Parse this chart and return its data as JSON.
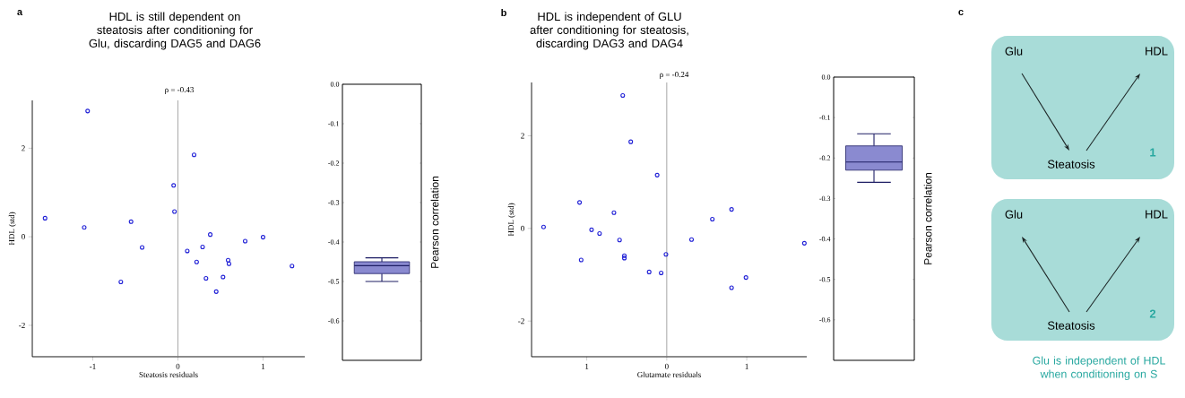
{
  "chart_data": [
    {
      "type": "scatter",
      "title": "HDL is still dependent on steatosis after conditioning for Glu, discarding DAG5 and DAG6",
      "xlabel": "Steatosis residuals",
      "ylabel": "HDL (std)",
      "marker": "circle",
      "xlim": [
        -1.71,
        1.49
      ],
      "ylim": [
        -2.71,
        3.08
      ],
      "xticks": [
        -1,
        0,
        1
      ],
      "yticks": [
        -2,
        0,
        2
      ],
      "annotations": [
        "a",
        "ρ = -0.43"
      ],
      "series": [
        {
          "type": "scatter",
          "color": "#1f1fd6",
          "x": [
            -1.56,
            -1.06,
            -1.1,
            -0.55,
            -0.42,
            -0.67,
            -0.05,
            -0.04,
            0.19,
            0.11,
            0.22,
            0.29,
            0.38,
            0.33,
            0.45,
            0.53,
            0.59,
            0.6,
            0.79,
            1.0,
            1.34
          ],
          "values": [
            0.42,
            2.84,
            0.21,
            0.34,
            -0.24,
            -1.02,
            1.16,
            0.57,
            1.85,
            -0.32,
            -0.57,
            -0.23,
            0.05,
            -0.94,
            -1.24,
            -0.91,
            -0.53,
            -0.61,
            -0.1,
            -0.01,
            -0.66
          ]
        }
      ],
      "ref_lines": [
        {
          "axis": "x",
          "value": 0,
          "color": "#7f7f7f"
        }
      ]
    },
    {
      "type": "box",
      "ylabel": "Pearson correlation",
      "categories": [
        null
      ],
      "color": "#8a8ad0",
      "ylim": [
        -0.7,
        0
      ],
      "yticks": [
        {
          "value": 0,
          "label": "0.0"
        },
        -0.1,
        -0.2,
        -0.3,
        -0.4,
        -0.5,
        -0.6
      ],
      "boxes": [
        {
          "low": -0.5,
          "q1": -0.48,
          "median": -0.46,
          "q3": -0.45,
          "high": -0.44
        }
      ]
    },
    {
      "type": "scatter",
      "title": "HDL is independent of GLU after conditioning for steatosis, discarding DAG3 and DAG4",
      "xlabel": "Glutamate residuals",
      "ylabel": "HDL (std)",
      "marker": "circle",
      "xlim": [
        -1.69,
        1.75
      ],
      "ylim": [
        -2.77,
        3.15
      ],
      "xticks": [
        {
          "value": -1,
          "label": "1"
        },
        0,
        1
      ],
      "yticks": [
        -2,
        0,
        2
      ],
      "annotations": [
        "b",
        "ρ = -0.24"
      ],
      "series": [
        {
          "type": "scatter",
          "color": "#1f1fd6",
          "x": [
            -0.55,
            -0.45,
            -0.12,
            -1.09,
            -0.66,
            -1.54,
            -0.94,
            -0.84,
            -0.59,
            -0.53,
            -0.53,
            -1.07,
            -0.22,
            -0.07,
            -0.01,
            0.31,
            0.57,
            0.81,
            0.81,
            0.99,
            1.72
          ],
          "values": [
            2.87,
            1.87,
            1.15,
            0.56,
            0.34,
            0.03,
            -0.03,
            -0.11,
            -0.25,
            -0.59,
            -0.64,
            -0.68,
            -0.94,
            -0.96,
            -0.56,
            -0.24,
            0.2,
            0.41,
            -1.28,
            -1.06,
            -0.32
          ]
        }
      ],
      "ref_lines": [
        {
          "axis": "x",
          "value": 0,
          "color": "#7f7f7f"
        }
      ]
    },
    {
      "type": "box",
      "ylabel": "Pearson correlation",
      "categories": [
        null
      ],
      "color": "#8a8ad0",
      "ylim": [
        -0.7,
        0
      ],
      "yticks": [
        {
          "value": 0,
          "label": "0.0"
        },
        -0.1,
        -0.2,
        -0.3,
        -0.4,
        -0.5,
        -0.6
      ],
      "boxes": [
        {
          "low": -0.26,
          "q1": -0.23,
          "median": -0.21,
          "q3": -0.17,
          "high": -0.14
        }
      ]
    },
    {
      "type": "other",
      "annotations": [
        "c",
        "Glu",
        "HDL",
        "Steatosis",
        "1",
        "Glu",
        "HDL",
        "Steatosis",
        "2",
        "Glu is independent of HDL when conditioning on S"
      ]
    }
  ]
}
